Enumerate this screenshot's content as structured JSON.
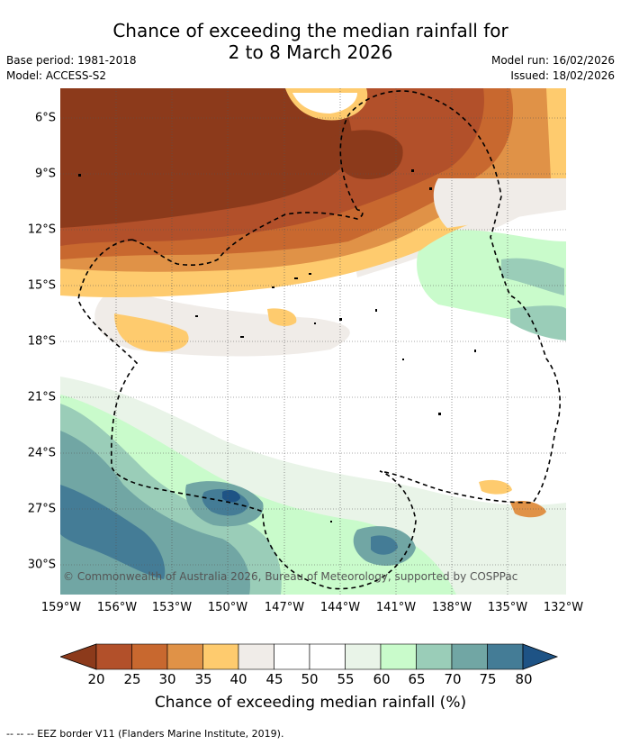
{
  "title_line1": "Chance of exceeding the median rainfall for",
  "title_line2": "2 to 8 March 2026",
  "base_period": "Base period: 1981-2018",
  "model": "Model: ACCESS-S2",
  "model_run": "Model run: 16/02/2026",
  "issued": "Issued: 18/02/2026",
  "lat_labels": [
    "6°S",
    "9°S",
    "12°S",
    "15°S",
    "18°S",
    "21°S",
    "24°S",
    "27°S",
    "30°S"
  ],
  "lon_labels": [
    "159°W",
    "156°W",
    "153°W",
    "150°W",
    "147°W",
    "144°W",
    "141°W",
    "138°W",
    "135°W",
    "132°W"
  ],
  "copyright": "© Commonwealth of Australia 2026, Bureau of Meteorology, supported by COSPPac",
  "colorbar": {
    "label": "Chance of exceeding median rainfall (%)",
    "ticks": [
      "20",
      "25",
      "30",
      "35",
      "40",
      "45",
      "50",
      "55",
      "60",
      "65",
      "70",
      "75",
      "80"
    ],
    "colors": [
      "#8c3a1b",
      "#b2502a",
      "#c8682f",
      "#e09247",
      "#fecb6e",
      "#f0ece8",
      "#ffffff",
      "#ffffff",
      "#e9f4e8",
      "#c9fbcb",
      "#9acdb8",
      "#71a6a4",
      "#447c96",
      "#1e5385"
    ]
  },
  "footnote": "--  --  -- EEZ border V11 (Flanders Marine Institute, 2019)."
}
